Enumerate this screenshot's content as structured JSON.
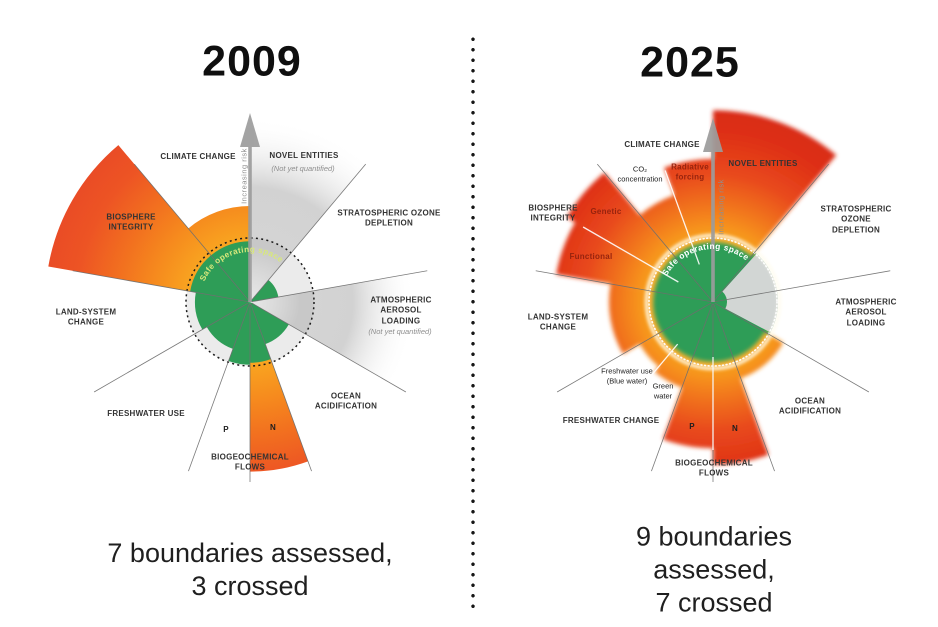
{
  "divider": {
    "style": "vertical-dotted-line"
  },
  "colors": {
    "safe_green": "#2E9D57",
    "earth_gray": "#EBEBEB",
    "gray_sector": "#D8D8D8",
    "crossed_orange": "#F5921E",
    "crossed_red": "#E23A1B",
    "inner_glow_yellow": "#FFD54F",
    "not_quantified_gray": "#9E9E9E",
    "arrow_gray": "#9C9C9C",
    "line_gray": "#6E6E6E",
    "label_dark": "#333333",
    "label_maroon": "#97230E",
    "note_gray": "#8F8F8F",
    "safe_label_2009": "#D8E87C",
    "safe_label_2025": "#FFFFFF",
    "divider_black": "#151515"
  },
  "chart_data": [
    {
      "type": "radial-boundaries",
      "year": "2009",
      "summary": "7 boundaries assessed,\n3 crossed",
      "safe_label": "Safe operating space",
      "risk_label": "Increasing risk",
      "group_labels": {
        "biogeochemical": "BIOGEOCHEMICAL\nFLOWS"
      },
      "value_note": "value is outer radius relative to safe-boundary circle (1.0 = boundary)",
      "sectors": [
        {
          "id": "novel-entities",
          "label": "NOVEL ENTITIES",
          "note": "(Not yet quantified)",
          "a0": 0,
          "a1": 40,
          "status": "not-quantified",
          "value": 2.9
        },
        {
          "id": "stratospheric-ozone-depletion",
          "label": "STRATOSPHERIC OZONE\nDEPLETION",
          "a0": 40,
          "a1": 80,
          "status": "safe",
          "value": 0.45
        },
        {
          "id": "atmospheric-aerosol-loading",
          "label": "ATMOSPHERIC\nAEROSOL\nLOADING",
          "note": "(Not yet quantified)",
          "a0": 80,
          "a1": 120,
          "status": "not-quantified",
          "value": 2.6
        },
        {
          "id": "ocean-acidification",
          "label": "OCEAN\nACIDIFICATION",
          "a0": 120,
          "a1": 160,
          "status": "safe",
          "value": 0.7
        },
        {
          "id": "biogeochemical-n",
          "label": "N",
          "a0": 160,
          "a1": 180,
          "status": "crossed",
          "value": 2.65
        },
        {
          "id": "biogeochemical-p",
          "label": "P",
          "a0": 180,
          "a1": 200,
          "status": "safe",
          "value": 0.98
        },
        {
          "id": "freshwater-use",
          "label": "FRESHWATER USE",
          "a0": 200,
          "a1": 240,
          "status": "safe",
          "value": 0.78
        },
        {
          "id": "land-system-change",
          "label": "LAND-SYSTEM\nCHANGE",
          "a0": 240,
          "a1": 280,
          "status": "safe",
          "value": 0.86
        },
        {
          "id": "biosphere-integrity",
          "label": "BIOSPHERE\nINTEGRITY",
          "a0": 280,
          "a1": 320,
          "status": "crossed",
          "value": 3.2
        },
        {
          "id": "climate-change",
          "label": "CLIMATE CHANGE",
          "a0": 320,
          "a1": 360,
          "status": "crossed",
          "value": 1.5
        }
      ]
    },
    {
      "type": "radial-boundaries",
      "year": "2025",
      "summary": "9 boundaries assessed,\n7 crossed",
      "safe_label": "Safe operating space",
      "risk_label": "Increasing risk",
      "group_labels": {
        "climate": "CLIMATE CHANGE",
        "biosphere": "BIOSPHERE\nINTEGRITY",
        "freshwater": "FRESHWATER CHANGE",
        "biogeochemical": "BIOGEOCHEMICAL\nFLOWS"
      },
      "value_note": "value is outer radius relative to safe-boundary circle (1.0 = boundary)",
      "sectors": [
        {
          "id": "novel-entities",
          "label": "NOVEL ENTITIES",
          "a0": 0,
          "a1": 40,
          "status": "crossed",
          "value": 2.95
        },
        {
          "id": "stratospheric-ozone-depletion",
          "label": "STRATOSPHERIC OZONE\nDEPLETION",
          "a0": 40,
          "a1": 80,
          "status": "safe",
          "value": 1.0
        },
        {
          "id": "atmospheric-aerosol-loading",
          "label": "ATMOSPHERIC\nAEROSOL\nLOADING",
          "a0": 80,
          "a1": 120,
          "status": "safe",
          "value": 1.0
        },
        {
          "id": "ocean-acidification",
          "label": "OCEAN\nACIDIFICATION",
          "a0": 120,
          "a1": 160,
          "status": "crossed",
          "value": 1.25
        },
        {
          "id": "biogeochemical-n",
          "label": "N",
          "a0": 160,
          "a1": 180,
          "status": "crossed",
          "value": 2.5
        },
        {
          "id": "biogeochemical-p",
          "label": "P",
          "a0": 180,
          "a1": 200,
          "status": "crossed",
          "value": 2.25
        },
        {
          "id": "green-water",
          "label": "Green\nwater",
          "a0": 200,
          "a1": 220,
          "status": "crossed",
          "value": 1.4
        },
        {
          "id": "blue-water",
          "label": "Freshwater use\n(Blue water)",
          "a0": 220,
          "a1": 240,
          "status": "crossed",
          "value": 1.3
        },
        {
          "id": "land-system-change",
          "label": "LAND-SYSTEM\nCHANGE",
          "a0": 240,
          "a1": 280,
          "status": "crossed",
          "value": 1.6
        },
        {
          "id": "biosphere-functional",
          "label": "Functional",
          "a0": 280,
          "a1": 300,
          "status": "crossed",
          "value": 2.45
        },
        {
          "id": "biosphere-genetic",
          "label": "Genetic",
          "a0": 300,
          "a1": 320,
          "status": "crossed",
          "value": 2.6
        },
        {
          "id": "co2-concentration",
          "label": "CO₂\nconcentration",
          "a0": 320,
          "a1": 340,
          "status": "crossed",
          "value": 1.75
        },
        {
          "id": "radiative-forcing",
          "label": "Radiative\nforcing",
          "a0": 340,
          "a1": 360,
          "status": "crossed",
          "value": 2.2
        }
      ]
    }
  ]
}
